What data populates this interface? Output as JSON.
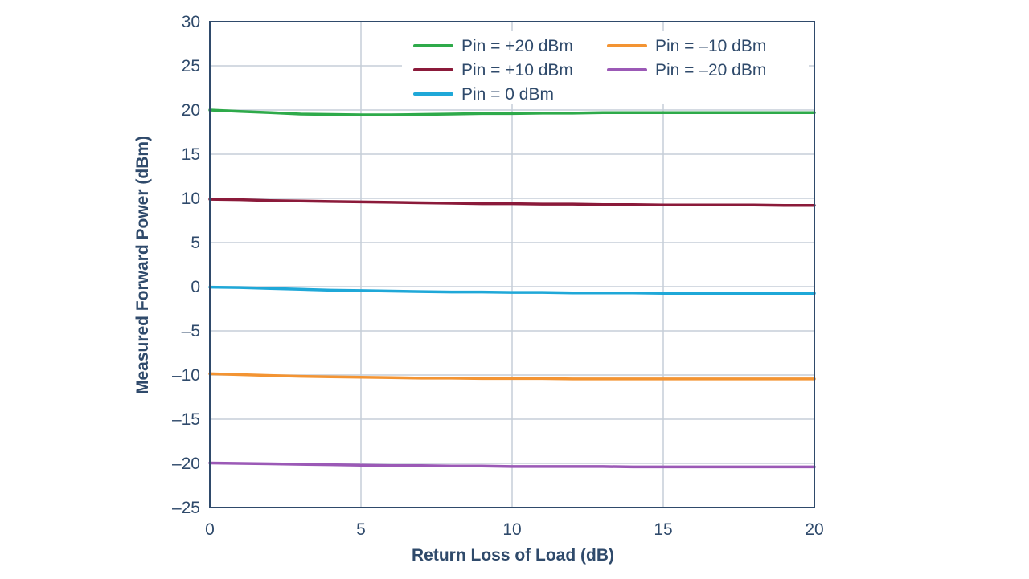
{
  "chart_data": {
    "type": "line",
    "title": "",
    "xlabel": "Return Loss of Load (dB)",
    "ylabel": "Measured Forward Power (dBm)",
    "xlim": [
      0,
      20
    ],
    "ylim": [
      -25,
      30
    ],
    "x_ticks": [
      0,
      5,
      10,
      15,
      20
    ],
    "x_tick_labels": [
      "0",
      "5",
      "10",
      "15",
      "20"
    ],
    "y_ticks": [
      30,
      25,
      20,
      15,
      10,
      5,
      0,
      -5,
      -10,
      -15,
      -20,
      -25
    ],
    "y_tick_labels": [
      "30",
      "25",
      "20",
      "15",
      "10",
      "5",
      "0",
      "–5",
      "–10",
      "–15",
      "–20",
      "–25"
    ],
    "grid": true,
    "legend_position": "top-right",
    "series": [
      {
        "name": "Pin = +20 dBm",
        "color": "#2eaa4a",
        "x": [
          0,
          1,
          2,
          3,
          4,
          5,
          6,
          7,
          8,
          9,
          10,
          11,
          12,
          13,
          14,
          15,
          16,
          17,
          18,
          19,
          20
        ],
        "y": [
          20.0,
          19.85,
          19.7,
          19.55,
          19.5,
          19.45,
          19.45,
          19.5,
          19.55,
          19.6,
          19.6,
          19.65,
          19.65,
          19.7,
          19.7,
          19.7,
          19.7,
          19.7,
          19.7,
          19.7,
          19.7
        ]
      },
      {
        "name": "Pin = +10 dBm",
        "color": "#8b1a3a",
        "x": [
          0,
          1,
          2,
          3,
          4,
          5,
          6,
          7,
          8,
          9,
          10,
          11,
          12,
          13,
          14,
          15,
          16,
          17,
          18,
          19,
          20
        ],
        "y": [
          9.9,
          9.85,
          9.75,
          9.7,
          9.65,
          9.6,
          9.55,
          9.5,
          9.45,
          9.4,
          9.4,
          9.35,
          9.35,
          9.3,
          9.3,
          9.25,
          9.25,
          9.25,
          9.25,
          9.2,
          9.2
        ]
      },
      {
        "name": "Pin = 0 dBm",
        "color": "#1fa8d8",
        "x": [
          0,
          1,
          2,
          3,
          4,
          5,
          6,
          7,
          8,
          9,
          10,
          11,
          12,
          13,
          14,
          15,
          16,
          17,
          18,
          19,
          20
        ],
        "y": [
          -0.05,
          -0.1,
          -0.2,
          -0.3,
          -0.4,
          -0.45,
          -0.5,
          -0.55,
          -0.6,
          -0.6,
          -0.65,
          -0.65,
          -0.7,
          -0.7,
          -0.7,
          -0.75,
          -0.75,
          -0.75,
          -0.75,
          -0.75,
          -0.75
        ]
      },
      {
        "name": "Pin = –10 dBm",
        "color": "#f39433",
        "x": [
          0,
          1,
          2,
          3,
          4,
          5,
          6,
          7,
          8,
          9,
          10,
          11,
          12,
          13,
          14,
          15,
          16,
          17,
          18,
          19,
          20
        ],
        "y": [
          -9.85,
          -9.95,
          -10.05,
          -10.15,
          -10.2,
          -10.25,
          -10.3,
          -10.35,
          -10.35,
          -10.4,
          -10.4,
          -10.4,
          -10.45,
          -10.45,
          -10.45,
          -10.45,
          -10.45,
          -10.45,
          -10.45,
          -10.45,
          -10.45
        ]
      },
      {
        "name": "Pin = –20 dBm",
        "color": "#9b59b6",
        "x": [
          0,
          1,
          2,
          3,
          4,
          5,
          6,
          7,
          8,
          9,
          10,
          11,
          12,
          13,
          14,
          15,
          16,
          17,
          18,
          19,
          20
        ],
        "y": [
          -19.95,
          -20.0,
          -20.05,
          -20.1,
          -20.15,
          -20.2,
          -20.25,
          -20.25,
          -20.3,
          -20.3,
          -20.35,
          -20.35,
          -20.35,
          -20.35,
          -20.4,
          -20.4,
          -20.4,
          -20.4,
          -20.4,
          -20.4,
          -20.4
        ]
      }
    ]
  }
}
